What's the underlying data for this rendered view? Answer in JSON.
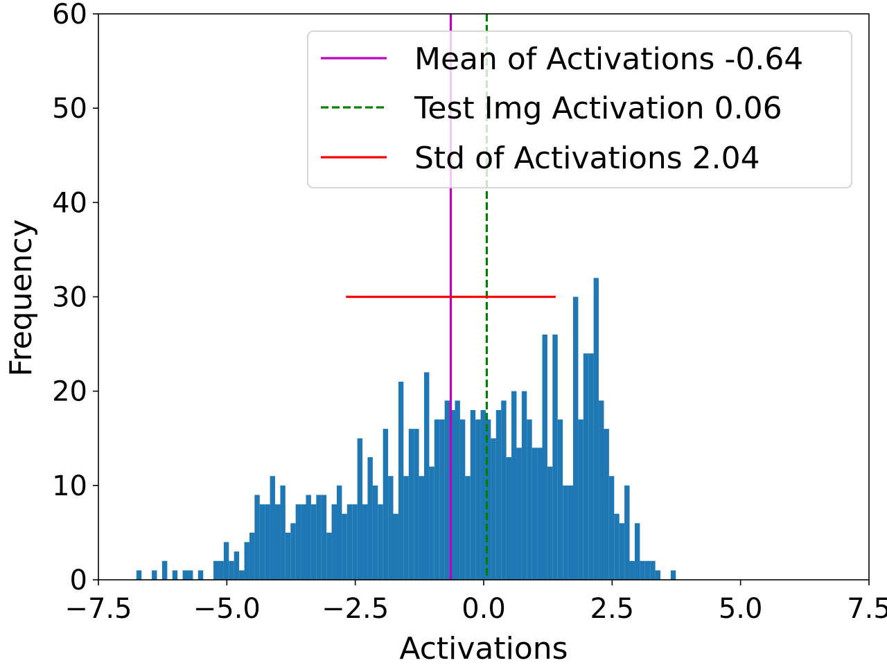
{
  "chart_data": {
    "type": "histogram",
    "title": "",
    "xlabel": "Activations",
    "ylabel": "Frequency",
    "xlim": [
      -7.5,
      7.5
    ],
    "ylim": [
      0,
      60
    ],
    "x_ticks": [
      -7.5,
      -5.0,
      -2.5,
      0.0,
      2.5,
      5.0,
      7.5
    ],
    "x_tick_labels": [
      "−7.5",
      "−5.0",
      "−2.5",
      "0.0",
      "2.5",
      "5.0",
      "7.5"
    ],
    "y_ticks": [
      0,
      10,
      20,
      30,
      40,
      50,
      60
    ],
    "y_tick_labels": [
      "0",
      "10",
      "20",
      "30",
      "40",
      "50",
      "60"
    ],
    "grid": false,
    "bar_color": "#1f77b4",
    "bin_start": -6.76,
    "bin_width": 0.1,
    "counts": [
      1,
      0,
      0,
      1,
      0,
      2,
      0,
      1,
      0,
      1,
      1,
      0,
      1,
      0,
      0,
      2,
      2,
      4,
      2,
      3,
      1,
      4,
      5,
      9,
      8,
      8,
      11,
      8,
      10,
      5,
      6,
      8,
      8,
      9,
      8,
      9,
      9,
      5,
      8,
      10,
      7,
      8,
      8,
      15,
      8,
      13,
      10,
      8,
      16,
      11,
      7,
      21,
      11,
      16,
      16,
      11,
      22,
      12,
      17,
      17,
      19,
      18,
      19,
      17,
      11,
      18,
      17,
      18,
      17,
      15,
      18,
      19,
      13,
      20,
      14,
      20,
      17,
      14,
      14,
      26,
      12,
      26,
      17,
      10,
      10,
      30,
      17,
      24,
      24,
      32,
      19,
      16,
      11,
      7,
      6,
      10,
      2,
      6,
      2,
      2,
      2,
      1,
      0,
      0,
      1
    ],
    "lines": [
      {
        "name": "Mean of Activations -0.64",
        "kind": "vline",
        "x": -0.64,
        "color": "#bf00bf",
        "style": "solid"
      },
      {
        "name": "Test Img Activation 0.06",
        "kind": "vline",
        "x": 0.06,
        "color": "#008000",
        "style": "dashed"
      },
      {
        "name": "Std of Activations 2.04",
        "kind": "hline",
        "y": 30,
        "x_range": [
          -2.68,
          1.4
        ],
        "color": "#ff0000",
        "style": "solid"
      }
    ],
    "legend": {
      "location": "top-right",
      "entries": [
        "Mean of Activations -0.64",
        "Test Img Activation 0.06",
        "Std of Activations 2.04"
      ]
    }
  }
}
